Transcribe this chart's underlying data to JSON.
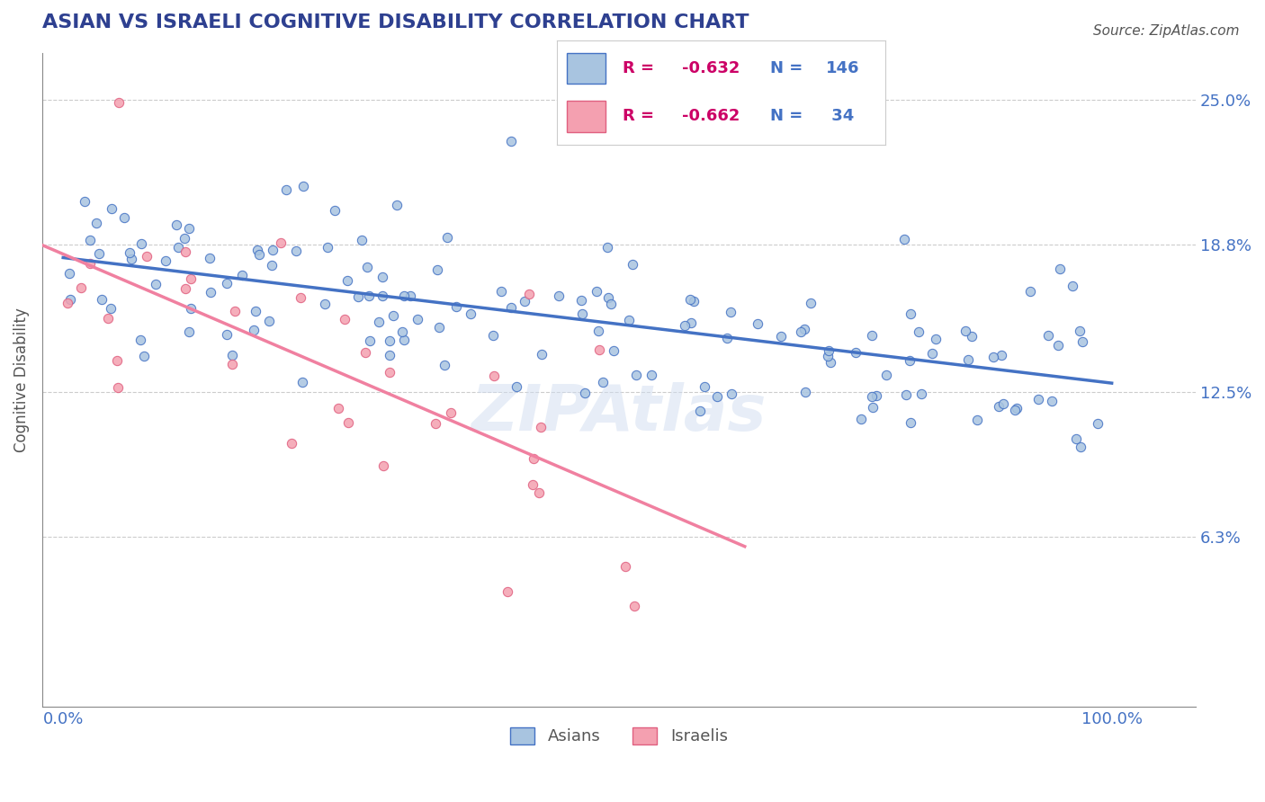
{
  "title": "ASIAN VS ISRAELI COGNITIVE DISABILITY CORRELATION CHART",
  "source": "Source: ZipAtlas.com",
  "xlabel": "",
  "ylabel": "Cognitive Disability",
  "asian_R": -0.632,
  "asian_N": 146,
  "israeli_R": -0.662,
  "israeli_N": 34,
  "asian_color": "#a8c4e0",
  "israeli_color": "#f4a0b0",
  "asian_line_color": "#4472c4",
  "israeli_line_color": "#f080a0",
  "title_color": "#2e4090",
  "axis_label_color": "#4472c4",
  "ytick_labels": [
    "6.3%",
    "12.5%",
    "18.8%",
    "25.0%"
  ],
  "ytick_values": [
    0.063,
    0.125,
    0.188,
    0.25
  ],
  "xtick_labels": [
    "0.0%",
    "100.0%"
  ],
  "xtick_values": [
    0.0,
    1.0
  ],
  "xlim": [
    -0.02,
    1.08
  ],
  "ylim": [
    -0.01,
    0.27
  ],
  "background_color": "#ffffff",
  "grid_color": "#cccccc",
  "watermark": "ZIPAtlas",
  "legend_R_color": "#cc0066",
  "legend_N_color": "#4472c4",
  "asian_scatter_seed": 42,
  "israeli_scatter_seed": 99
}
